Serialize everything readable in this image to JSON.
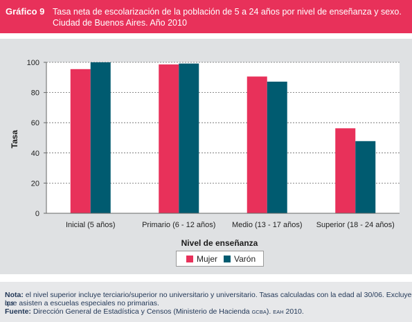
{
  "header": {
    "label": "Gráfico 9",
    "title": "Tasa neta de escolarización de la población de 5 a 24 años por nivel de enseñanza y sexo. Ciudad de Buenos Aires. Año 2010"
  },
  "chart_data": {
    "type": "bar",
    "categories": [
      "Inicial (5 años)",
      "Primario (6 - 12 años)",
      "Medio (13 - 17 años)",
      "Superior (18 - 24 años)"
    ],
    "series": [
      {
        "name": "Mujer",
        "values": [
          95.5,
          98.6,
          90.6,
          56.3
        ],
        "color": "#e8315a"
      },
      {
        "name": "Varón",
        "values": [
          100,
          99.2,
          87.2,
          47.8
        ],
        "color": "#005b70"
      }
    ],
    "xlabel": "Nivel de enseñanza",
    "ylabel": "Tasa",
    "ylim": [
      0,
      100
    ],
    "yticks": [
      "0",
      "20",
      "40",
      "60",
      "80",
      "100"
    ],
    "grid": true,
    "legend_position": "bottom"
  },
  "notes": {
    "nota_label": "Nota:",
    "nota_text_1": " el nivel superior incluye terciario/superior no universitario y universitario. Tasas calculadas con la edad al 30/06. Excluye los",
    "nota_text_2": "que asisten a escuelas especiales no primarias.",
    "fuente_label": "Fuente:",
    "fuente_text": " Dirección General de Estadística y Censos (Ministerio de Hacienda ",
    "fuente_gcba": "GCBA",
    "fuente_mid": "). ",
    "fuente_eah": "EAH",
    "fuente_end": " 2010."
  }
}
